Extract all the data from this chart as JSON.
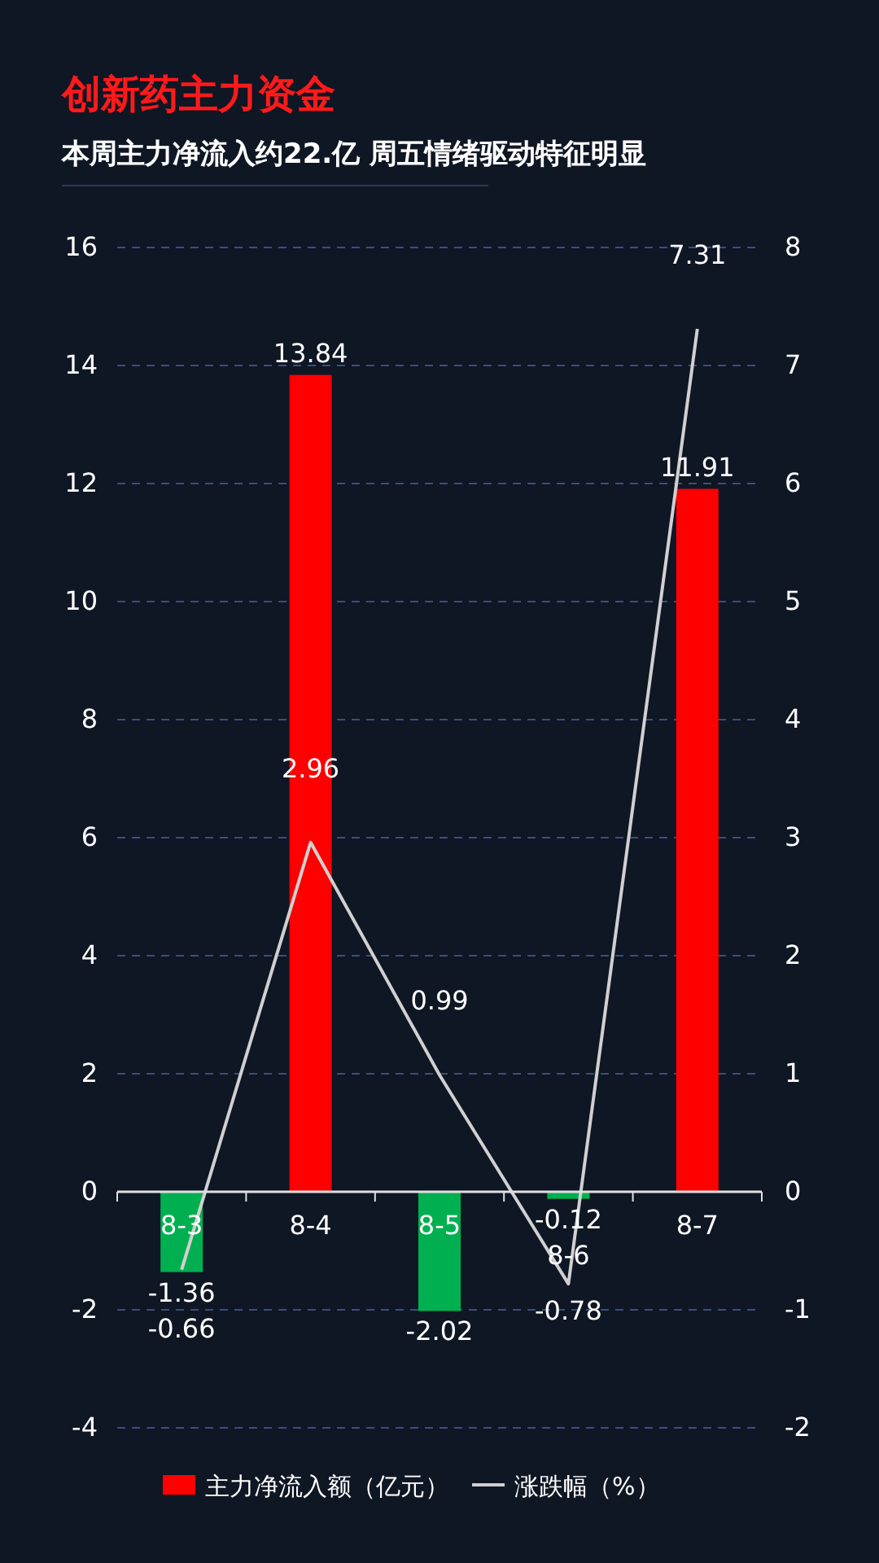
{
  "chart_data": {
    "type": "bar",
    "title": "创新药主力资金",
    "subtitle": "本周主力净流入约22.亿 周五情绪驱动特征明显",
    "categories": [
      "8-3",
      "8-4",
      "8-5",
      "8-6",
      "8-7"
    ],
    "series": [
      {
        "name": "主力净流入额（亿元）",
        "color": "#ff0000",
        "colors": [
          "#00b050",
          "#ff0000",
          "#00b050",
          "#00b050",
          "#ff0000"
        ],
        "values": [
          -1.36,
          13.84,
          -2.02,
          -0.12,
          11.91
        ]
      },
      {
        "name": "涨跌幅（%）",
        "type": "line",
        "axis": "y2",
        "color": "#d0d0d0",
        "values": [
          -0.66,
          2.96,
          0.99,
          -0.78,
          7.31
        ]
      }
    ],
    "ylim": [
      -4,
      16
    ],
    "yticks": [
      -4,
      -2,
      0,
      2,
      4,
      6,
      8,
      10,
      12,
      14,
      16
    ],
    "y2lim": [
      -2,
      8
    ],
    "y2ticks": [
      -2,
      -1,
      0,
      1,
      2,
      3,
      4,
      5,
      6,
      7,
      8
    ],
    "grid": "y",
    "legend": "bottom",
    "data_labels": true,
    "marker": "none"
  }
}
